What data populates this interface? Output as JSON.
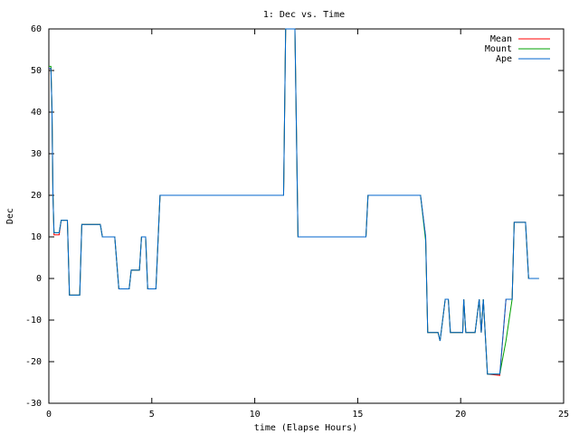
{
  "chart_data": {
    "type": "line",
    "title": "1: Dec vs. Time",
    "x_label": "time (Elapse Hours)",
    "y_label": "Dec",
    "x": [
      0,
      0.1,
      0.15,
      0.2,
      0.25,
      0.5,
      0.6,
      0.9,
      1.0,
      1.5,
      1.6,
      2.5,
      2.6,
      3.2,
      3.4,
      3.9,
      4.0,
      4.4,
      4.5,
      4.7,
      4.8,
      5.2,
      5.4,
      11.4,
      11.5,
      11.95,
      12.1,
      15.4,
      15.5,
      18.05,
      18.3,
      18.4,
      18.9,
      19.0,
      19.25,
      19.4,
      19.5,
      20.1,
      20.15,
      20.25,
      20.7,
      20.9,
      21.0,
      21.1,
      21.3,
      21.9,
      22.2,
      22.5,
      22.6,
      23.15,
      23.3,
      23.8
    ],
    "series": [
      {
        "name": "Mean",
        "color": "#ff0000",
        "values": [
          50.5,
          50.5,
          41,
          20,
          10.5,
          10.5,
          14,
          14,
          -4,
          -4,
          13,
          13,
          10,
          10,
          -2.5,
          -2.5,
          2,
          2,
          10,
          10,
          -2.5,
          -2.5,
          20,
          20,
          60,
          60,
          10,
          10,
          20,
          20,
          10,
          -13,
          -13,
          -15,
          -5,
          -5,
          -13,
          -13,
          -5,
          -13,
          -13,
          -5,
          -13,
          -5,
          -23,
          -23.3,
          -5,
          -5,
          13.5,
          13.5,
          0,
          0
        ]
      },
      {
        "name": "Mount",
        "color": "#00a000",
        "values": [
          51,
          51,
          41,
          20,
          11,
          11,
          14,
          14,
          -4,
          -4,
          13,
          13,
          10,
          10,
          -2.5,
          -2.5,
          2,
          2,
          10,
          10,
          -2.5,
          -2.5,
          20,
          20,
          60,
          60,
          10,
          10,
          20,
          20,
          9,
          -13,
          -13,
          -15,
          -5,
          -5,
          -13,
          -13,
          -5,
          -13,
          -13,
          -5,
          -13,
          -5,
          -23,
          -23,
          -15,
          -5,
          13.5,
          13.5,
          0,
          0
        ]
      },
      {
        "name": "Ape",
        "color": "#0066cc",
        "values": [
          50.5,
          50.5,
          41,
          20,
          11,
          11,
          14,
          14,
          -4,
          -4,
          13,
          13,
          10,
          10,
          -2.5,
          -2.5,
          2,
          2,
          10,
          10,
          -2.5,
          -2.5,
          20,
          20,
          60,
          60,
          10,
          10,
          20,
          20,
          10,
          -13,
          -13,
          -15,
          -5,
          -5,
          -13,
          -13,
          -5,
          -13,
          -13,
          -5,
          -13,
          -5,
          -23,
          -23,
          -5,
          -5,
          13.5,
          13.5,
          0,
          0
        ]
      }
    ],
    "xlim": [
      0,
      25
    ],
    "xticks": [
      0,
      5,
      10,
      15,
      20,
      25
    ],
    "ylim": [
      -30,
      60
    ],
    "yticks": [
      -30,
      -20,
      -10,
      0,
      10,
      20,
      30,
      40,
      50,
      60
    ],
    "legend": "top right"
  }
}
